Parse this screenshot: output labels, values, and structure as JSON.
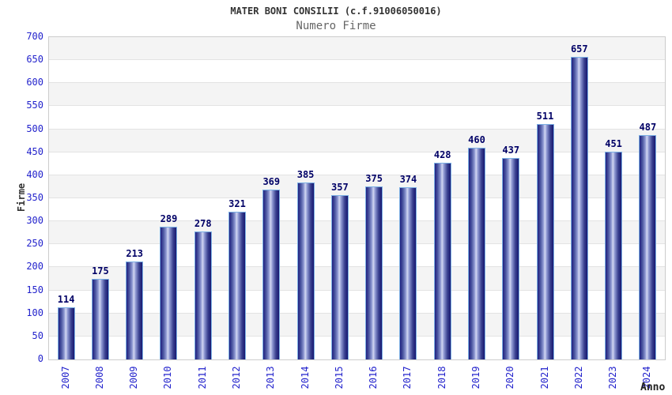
{
  "title": "MATER BONI CONSILII (c.f.91006050016)",
  "subtitle": "Numero Firme",
  "chart_data": {
    "type": "bar",
    "title": "MATER BONI CONSILII (c.f.91006050016)",
    "subtitle": "Numero Firme",
    "xlabel": "Anno",
    "ylabel": "Firme",
    "categories": [
      "2007",
      "2008",
      "2009",
      "2010",
      "2011",
      "2012",
      "2013",
      "2014",
      "2015",
      "2016",
      "2017",
      "2018",
      "2019",
      "2020",
      "2021",
      "2022",
      "2023",
      "2024"
    ],
    "values": [
      114,
      175,
      213,
      289,
      278,
      321,
      369,
      385,
      357,
      375,
      374,
      428,
      460,
      437,
      511,
      657,
      451,
      487
    ],
    "ylim": [
      0,
      700
    ],
    "ytick_step": 50,
    "grid": "horizontal-bands-alternating",
    "legend": "none"
  },
  "colors": {
    "tick_label": "#2323cc",
    "value_label": "#000066",
    "title": "#333333",
    "subtitle": "#666666",
    "axis_title": "#333333",
    "band_gray": "#f4f4f4",
    "band_white": "#ffffff",
    "gridline": "#e3e3e3",
    "plot_border": "#cccccc",
    "bar_border": "#7cb0e4",
    "bar_dark": "#202080",
    "bar_mid": "#8e98d2",
    "bar_light": "#d2d7f2"
  }
}
